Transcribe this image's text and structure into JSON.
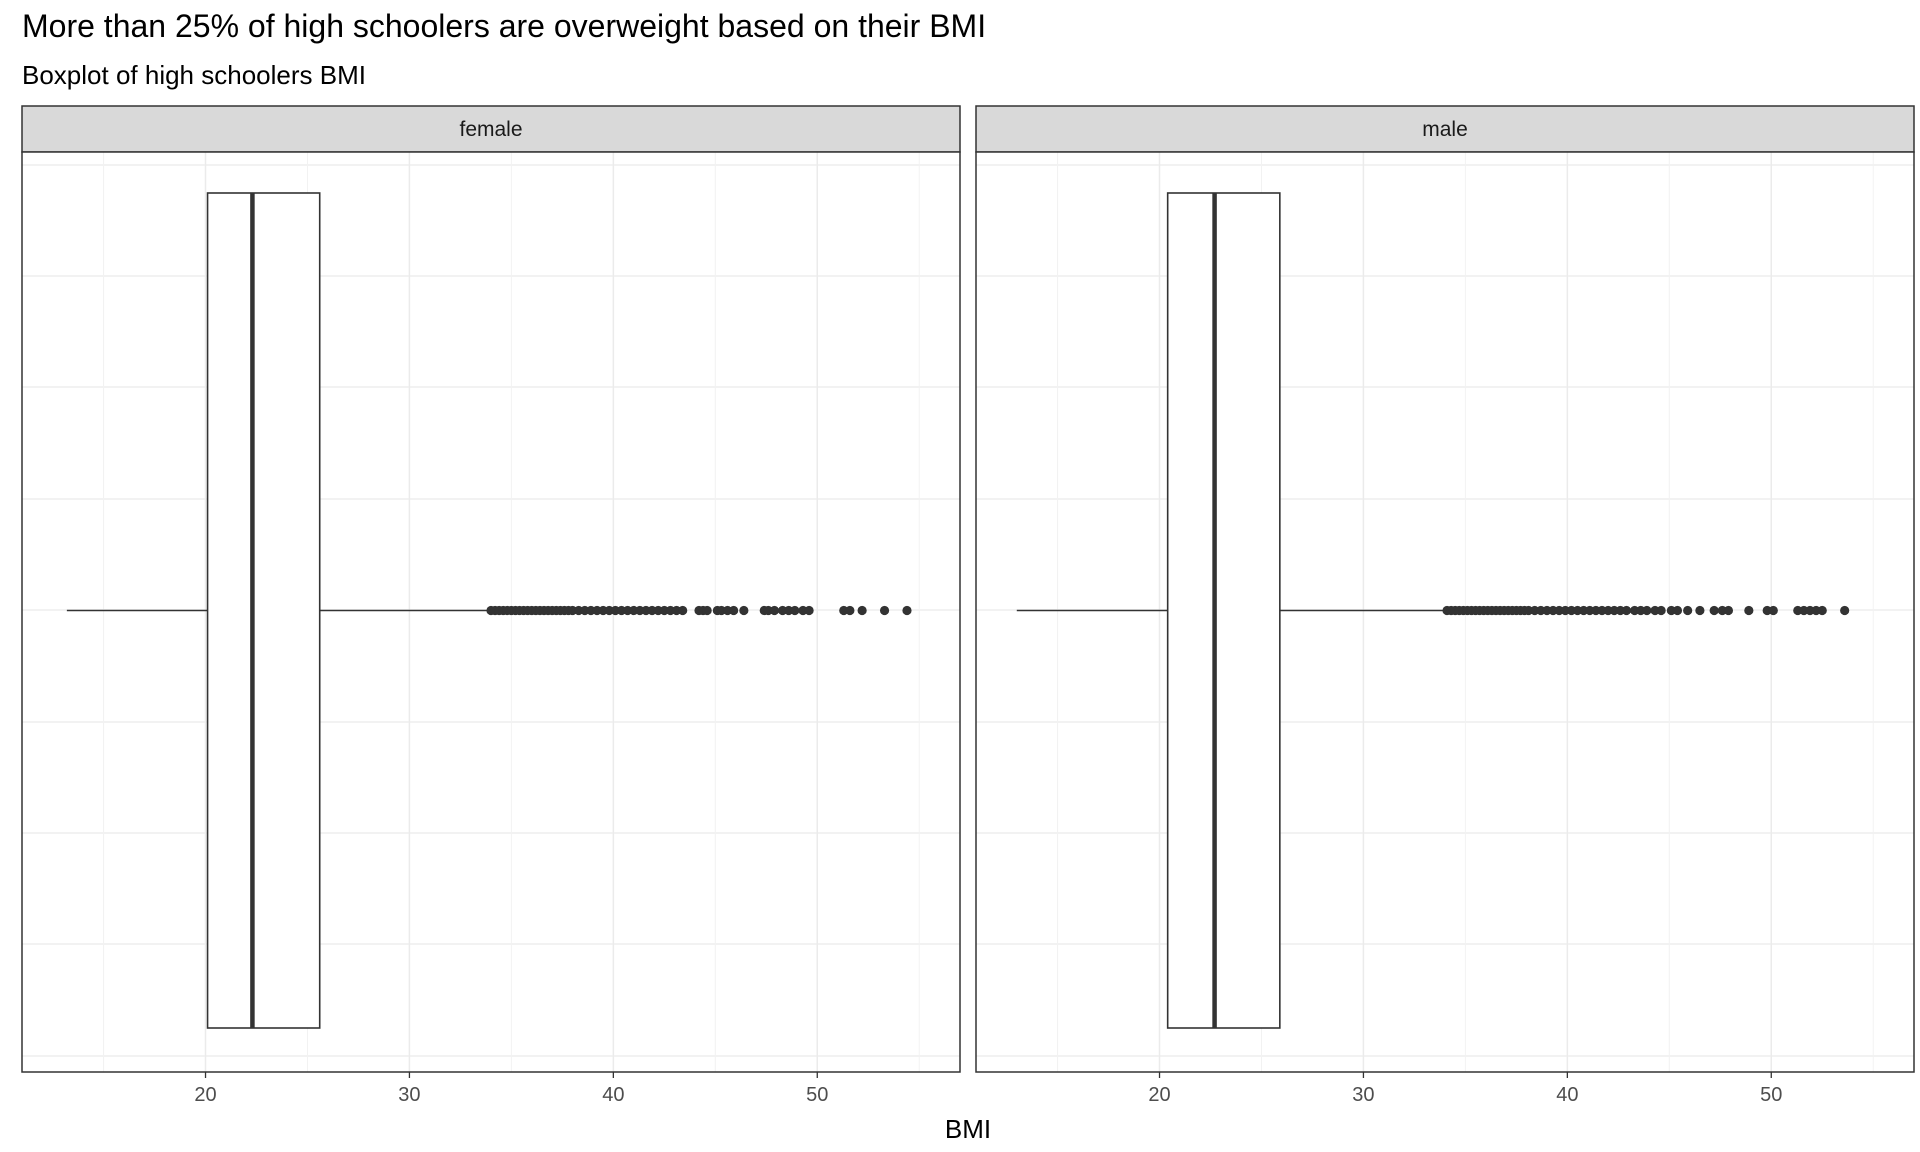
{
  "header": {
    "title": "More than 25% of high schoolers are overweight based on their BMI",
    "subtitle": "Boxplot of high schoolers BMI"
  },
  "chart_data": {
    "type": "boxplot",
    "title": "More than 25% of high schoolers are overweight based on their BMI",
    "subtitle": "Boxplot of high schoolers BMI",
    "xlabel": "BMI",
    "ylabel": "",
    "xlim": [
      11,
      57
    ],
    "x_ticks": [
      20,
      30,
      40,
      50
    ],
    "grid": true,
    "orientation": "horizontal",
    "facets": [
      {
        "label": "female",
        "whisker_low": 13.2,
        "q1": 20.1,
        "median": 22.3,
        "q3": 25.6,
        "whisker_high": 33.9,
        "outliers": [
          34.0,
          34.2,
          34.4,
          34.6,
          34.8,
          35.0,
          35.2,
          35.4,
          35.6,
          35.8,
          36.0,
          36.2,
          36.4,
          36.6,
          36.8,
          37.0,
          37.2,
          37.4,
          37.6,
          37.8,
          38.0,
          38.3,
          38.6,
          38.9,
          39.2,
          39.5,
          39.8,
          40.1,
          40.4,
          40.7,
          41.0,
          41.3,
          41.6,
          41.9,
          42.2,
          42.5,
          42.8,
          43.1,
          43.4,
          44.2,
          44.4,
          44.6,
          45.1,
          45.3,
          45.6,
          45.9,
          46.4,
          47.4,
          47.6,
          47.9,
          48.3,
          48.6,
          48.9,
          49.3,
          49.6,
          51.3,
          51.6,
          52.2,
          53.3,
          54.4
        ]
      },
      {
        "label": "male",
        "whisker_low": 13.0,
        "q1": 20.4,
        "median": 22.7,
        "q3": 25.9,
        "whisker_high": 34.0,
        "outliers": [
          34.1,
          34.3,
          34.5,
          34.7,
          34.9,
          35.1,
          35.3,
          35.5,
          35.7,
          35.9,
          36.1,
          36.3,
          36.5,
          36.7,
          36.9,
          37.1,
          37.3,
          37.5,
          37.7,
          37.9,
          38.1,
          38.4,
          38.7,
          39.0,
          39.3,
          39.6,
          39.9,
          40.2,
          40.5,
          40.8,
          41.1,
          41.4,
          41.7,
          42.0,
          42.3,
          42.6,
          42.9,
          43.3,
          43.6,
          43.9,
          44.3,
          44.6,
          45.1,
          45.4,
          45.9,
          46.5,
          47.2,
          47.6,
          47.9,
          48.9,
          49.8,
          50.1,
          51.3,
          51.6,
          51.9,
          52.2,
          52.5,
          53.6
        ]
      }
    ]
  }
}
